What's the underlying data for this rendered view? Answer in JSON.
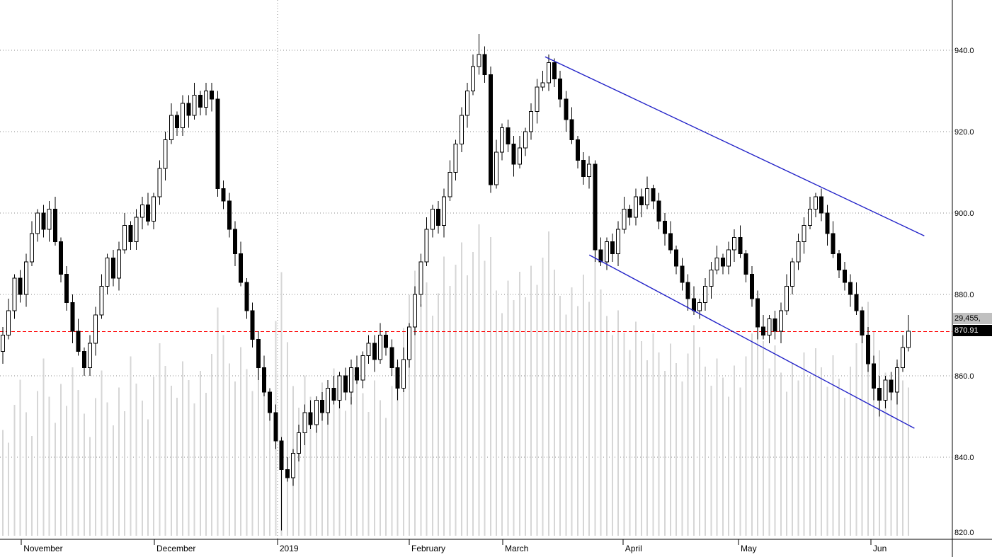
{
  "tags": {
    "volume_tag": "29,455,",
    "last_price_tag": "870.91"
  },
  "chart_data": {
    "type": "candlestick",
    "description": "Daily OHLC price chart with volume, Nov 2018 - Jun 2019, descending blue channel, last price 870.91",
    "grid": "dotted",
    "legend_position": "none",
    "ylim": [
      820,
      952
    ],
    "y_axis": {
      "ticks": [
        {
          "label": "940.0",
          "price": 940
        },
        {
          "label": "920.0",
          "price": 920
        },
        {
          "label": "900.0",
          "price": 900
        },
        {
          "label": "880.0",
          "price": 880
        },
        {
          "label": "860.0",
          "price": 860
        },
        {
          "label": "840.0",
          "price": 840
        },
        {
          "label": "820.0",
          "price": 820
        }
      ]
    },
    "x_axis": {
      "ticks": [
        {
          "label": "November",
          "day": 3.2
        },
        {
          "label": "December",
          "day": 26.1
        },
        {
          "label": "2019",
          "day": 47.3,
          "year_divider": true
        },
        {
          "label": "February",
          "day": 70
        },
        {
          "label": "March",
          "day": 86.1
        },
        {
          "label": "April",
          "day": 106.8
        },
        {
          "label": "May",
          "day": 126.7
        },
        {
          "label": "Jun",
          "day": 149.5
        }
      ]
    },
    "last_price_line": {
      "price": 870.91,
      "color": "#ff0000",
      "style": "dashed"
    },
    "trendlines": [
      {
        "name": "channel-upper-trendline",
        "from": {
          "day": 93.4,
          "price": 938.4
        },
        "to": {
          "day": 158.7,
          "price": 894.4
        },
        "color": "#2323c8"
      },
      {
        "name": "channel-lower-trendline",
        "from": {
          "day": 101.0,
          "price": 889.7
        },
        "to": {
          "day": 157.0,
          "price": 847.1
        },
        "color": "#2323c8"
      }
    ],
    "colors": {
      "up_fill": "#ffffff",
      "down_fill": "#000000",
      "outline": "#000000",
      "volume": "#d6d6d6",
      "grid": "#8a8a8a",
      "axis": "#000000"
    },
    "candles_format": [
      "open",
      "high",
      "low",
      "close",
      "volume"
    ],
    "candles": [
      [
        866,
        872,
        863,
        870,
        21000
      ],
      [
        870,
        879,
        869,
        876,
        18500
      ],
      [
        876,
        885,
        874,
        884,
        26000
      ],
      [
        884,
        886,
        878,
        880,
        31000
      ],
      [
        880,
        890,
        877,
        888,
        24500
      ],
      [
        888,
        898,
        887,
        895,
        19800
      ],
      [
        895,
        901,
        893,
        900,
        28700
      ],
      [
        900,
        902,
        894,
        896,
        35200
      ],
      [
        896,
        903,
        893,
        901,
        27600
      ],
      [
        901,
        904,
        892,
        893,
        22400
      ],
      [
        893,
        894,
        883,
        885,
        30100
      ],
      [
        885,
        887,
        876,
        878,
        25800
      ],
      [
        878,
        880,
        868,
        871,
        33400
      ],
      [
        871,
        874,
        865,
        866,
        28900
      ],
      [
        866,
        867,
        860,
        862,
        24200
      ],
      [
        862,
        870,
        860,
        868,
        19600
      ],
      [
        868,
        877,
        865,
        875,
        27300
      ],
      [
        875,
        885,
        874,
        882,
        32800
      ],
      [
        882,
        890,
        880,
        889,
        26500
      ],
      [
        889,
        891,
        882,
        884,
        21900
      ],
      [
        884,
        893,
        881,
        891,
        29400
      ],
      [
        891,
        900,
        890,
        897,
        24700
      ],
      [
        897,
        898,
        891,
        893,
        35600
      ],
      [
        893,
        901,
        891,
        899,
        30200
      ],
      [
        899,
        904,
        896,
        902,
        26800
      ],
      [
        902,
        905,
        897,
        898,
        23100
      ],
      [
        898,
        905,
        896,
        904,
        31500
      ],
      [
        904,
        913,
        902,
        911,
        38200
      ],
      [
        911,
        920,
        908,
        918,
        33700
      ],
      [
        918,
        927,
        917,
        924,
        29800
      ],
      [
        924,
        925,
        919,
        921,
        27400
      ],
      [
        921,
        929,
        919,
        927,
        34600
      ],
      [
        927,
        929,
        921,
        924,
        30900
      ],
      [
        924,
        932,
        923,
        929,
        26300
      ],
      [
        929,
        930,
        924,
        926,
        32700
      ],
      [
        926,
        932,
        924,
        930,
        28400
      ],
      [
        930,
        932,
        925,
        928,
        36100
      ],
      [
        928,
        930,
        904,
        906,
        45300
      ],
      [
        906,
        908,
        901,
        903,
        39800
      ],
      [
        903,
        905,
        894,
        896,
        34200
      ],
      [
        896,
        898,
        887,
        890,
        30600
      ],
      [
        890,
        893,
        882,
        883,
        37400
      ],
      [
        883,
        884,
        874,
        876,
        33100
      ],
      [
        876,
        878,
        867,
        869,
        28700
      ],
      [
        869,
        871,
        859,
        862,
        35800
      ],
      [
        862,
        865,
        855,
        856,
        31200
      ],
      [
        856,
        857,
        849,
        851,
        27900
      ],
      [
        851,
        853,
        842,
        844,
        42600
      ],
      [
        844,
        845,
        822,
        837,
        52300
      ],
      [
        837,
        840,
        834,
        835,
        38400
      ],
      [
        835,
        842,
        833,
        841,
        29700
      ],
      [
        841,
        848,
        839,
        846,
        25400
      ],
      [
        846,
        853,
        843,
        851,
        31800
      ],
      [
        851,
        854,
        847,
        848,
        27600
      ],
      [
        848,
        855,
        846,
        854,
        23900
      ],
      [
        854,
        856,
        849,
        851,
        30400
      ],
      [
        851,
        859,
        848,
        857,
        26700
      ],
      [
        857,
        860,
        853,
        854,
        33200
      ],
      [
        854,
        861,
        852,
        860,
        28600
      ],
      [
        860,
        862,
        854,
        856,
        24800
      ],
      [
        856,
        864,
        853,
        862,
        27500
      ],
      [
        862,
        865,
        858,
        859,
        32100
      ],
      [
        859,
        866,
        857,
        865,
        28300
      ],
      [
        865,
        870,
        863,
        868,
        24600
      ],
      [
        868,
        870,
        861,
        864,
        30800
      ],
      [
        864,
        873,
        863,
        870,
        26900
      ],
      [
        870,
        871,
        865,
        867,
        23400
      ],
      [
        867,
        869,
        860,
        862,
        29700
      ],
      [
        862,
        864,
        854,
        857,
        34500
      ],
      [
        857,
        867,
        856,
        864,
        41200
      ],
      [
        864,
        873,
        862,
        872,
        47800
      ],
      [
        872,
        882,
        870,
        880,
        52600
      ],
      [
        880,
        890,
        877,
        888,
        45900
      ],
      [
        888,
        899,
        887,
        896,
        50300
      ],
      [
        896,
        902,
        894,
        901,
        43700
      ],
      [
        901,
        903,
        895,
        897,
        48100
      ],
      [
        897,
        906,
        894,
        904,
        55400
      ],
      [
        904,
        913,
        903,
        910,
        49600
      ],
      [
        910,
        918,
        908,
        917,
        53800
      ],
      [
        917,
        926,
        915,
        924,
        58200
      ],
      [
        924,
        932,
        921,
        930,
        51700
      ],
      [
        930,
        939,
        929,
        936,
        56300
      ],
      [
        936,
        944,
        934,
        939,
        61800
      ],
      [
        939,
        941,
        932,
        934,
        54600
      ],
      [
        934,
        936,
        905,
        907,
        59300
      ],
      [
        907,
        918,
        906,
        915,
        48700
      ],
      [
        915,
        922,
        913,
        921,
        44200
      ],
      [
        921,
        923,
        915,
        917,
        50600
      ],
      [
        917,
        919,
        909,
        912,
        46800
      ],
      [
        912,
        919,
        911,
        916,
        52400
      ],
      [
        916,
        921,
        914,
        920,
        47300
      ],
      [
        920,
        927,
        918,
        925,
        53600
      ],
      [
        925,
        933,
        922,
        931,
        49800
      ],
      [
        931,
        935,
        930,
        932,
        55200
      ],
      [
        932,
        939,
        930,
        937,
        60400
      ],
      [
        937,
        938,
        931,
        933,
        52800
      ],
      [
        933,
        935,
        926,
        928,
        47600
      ],
      [
        928,
        930,
        920,
        923,
        43900
      ],
      [
        923,
        926,
        917,
        918,
        49300
      ],
      [
        918,
        919,
        911,
        913,
        45600
      ],
      [
        913,
        915,
        907,
        909,
        51800
      ],
      [
        909,
        914,
        906,
        912,
        46400
      ],
      [
        912,
        913,
        888,
        891,
        57200
      ],
      [
        891,
        894,
        887,
        888,
        48900
      ],
      [
        888,
        894,
        886,
        893,
        43600
      ],
      [
        893,
        895,
        888,
        890,
        39800
      ],
      [
        890,
        898,
        887,
        896,
        44700
      ],
      [
        896,
        904,
        895,
        901,
        40300
      ],
      [
        901,
        902,
        897,
        899,
        36900
      ],
      [
        899,
        906,
        897,
        904,
        42500
      ],
      [
        904,
        906,
        899,
        902,
        38600
      ],
      [
        902,
        909,
        901,
        906,
        34800
      ],
      [
        906,
        907,
        901,
        903,
        40200
      ],
      [
        903,
        905,
        896,
        898,
        36400
      ],
      [
        898,
        900,
        892,
        895,
        32700
      ],
      [
        895,
        898,
        890,
        891,
        38100
      ],
      [
        891,
        892,
        885,
        887,
        34300
      ],
      [
        887,
        889,
        881,
        883,
        30600
      ],
      [
        883,
        885,
        876,
        879,
        36200
      ],
      [
        879,
        882,
        875,
        876,
        41800
      ],
      [
        876,
        879,
        874,
        878,
        37400
      ],
      [
        878,
        884,
        876,
        882,
        33600
      ],
      [
        882,
        888,
        879,
        886,
        29800
      ],
      [
        886,
        892,
        885,
        889,
        35200
      ],
      [
        889,
        890,
        885,
        887,
        31400
      ],
      [
        887,
        893,
        885,
        891,
        27600
      ],
      [
        891,
        896,
        888,
        894,
        33800
      ],
      [
        894,
        897,
        889,
        890,
        29400
      ],
      [
        890,
        891,
        883,
        885,
        35600
      ],
      [
        885,
        887,
        877,
        879,
        40200
      ],
      [
        879,
        881,
        869,
        872,
        44800
      ],
      [
        872,
        875,
        869,
        870,
        38600
      ],
      [
        870,
        875,
        868,
        874,
        33200
      ],
      [
        874,
        876,
        869,
        871,
        37800
      ],
      [
        871,
        878,
        868,
        876,
        32400
      ],
      [
        876,
        885,
        875,
        882,
        28600
      ],
      [
        882,
        889,
        880,
        888,
        34200
      ],
      [
        888,
        895,
        886,
        893,
        30800
      ],
      [
        893,
        899,
        890,
        897,
        36400
      ],
      [
        897,
        904,
        896,
        901,
        31600
      ],
      [
        901,
        905,
        899,
        904,
        37200
      ],
      [
        904,
        906,
        898,
        900,
        33400
      ],
      [
        900,
        902,
        892,
        895,
        29600
      ],
      [
        895,
        898,
        889,
        890,
        35800
      ],
      [
        890,
        891,
        884,
        886,
        31200
      ],
      [
        886,
        888,
        881,
        883,
        27400
      ],
      [
        883,
        885,
        877,
        880,
        33600
      ],
      [
        880,
        883,
        875,
        876,
        38200
      ],
      [
        876,
        877,
        868,
        870,
        42800
      ],
      [
        870,
        872,
        861,
        863,
        46400
      ],
      [
        863,
        865,
        854,
        857,
        40600
      ],
      [
        857,
        860,
        850,
        854,
        36800
      ],
      [
        854,
        860,
        852,
        859,
        32400
      ],
      [
        859,
        861,
        854,
        856,
        28600
      ],
      [
        856,
        864,
        853,
        862,
        34200
      ],
      [
        862,
        870,
        861,
        867,
        30800
      ],
      [
        867,
        875,
        866,
        871,
        29455
      ]
    ]
  }
}
